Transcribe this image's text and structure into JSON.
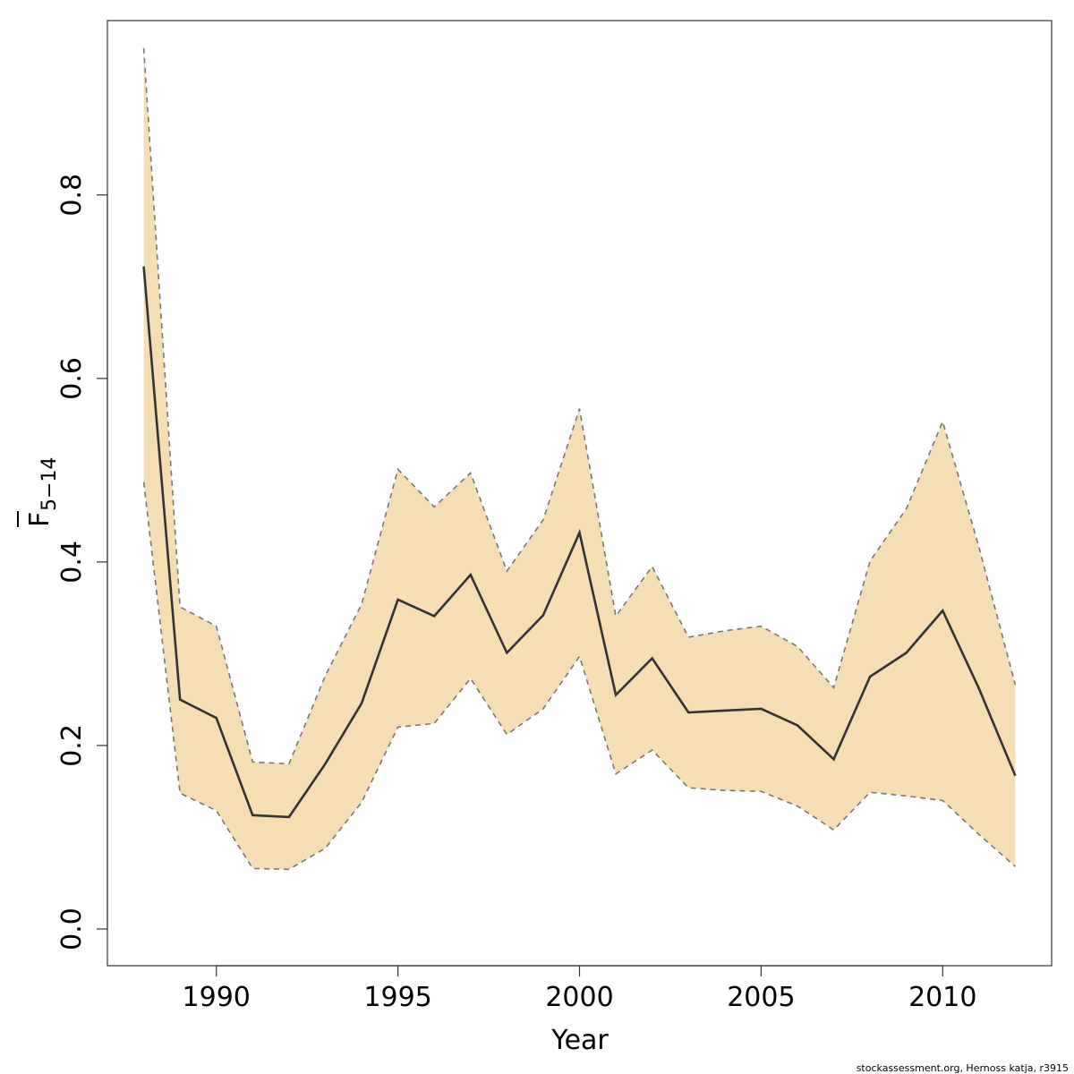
{
  "chart_data": {
    "type": "area",
    "title": "",
    "xlabel": "Year",
    "ylabel": {
      "main": "F",
      "subscript": "5−14"
    },
    "xlim": [
      1987.0,
      2013.0
    ],
    "ylim": [
      -0.04,
      0.99
    ],
    "x_ticks": [
      1990,
      1995,
      2000,
      2005,
      2010
    ],
    "y_ticks": [
      0.0,
      0.2,
      0.4,
      0.6,
      0.8
    ],
    "x_tick_labels": [
      "1990",
      "1995",
      "2000",
      "2005",
      "2010"
    ],
    "y_tick_labels": [
      "0.0",
      "0.2",
      "0.4",
      "0.6",
      "0.8"
    ],
    "x": [
      1988,
      1989,
      1990,
      1991,
      1992,
      1993,
      1994,
      1995,
      1996,
      1997,
      1998,
      1999,
      2000,
      2001,
      2002,
      2003,
      2004,
      2005,
      2006,
      2007,
      2008,
      2009,
      2010,
      2011,
      2012
    ],
    "series": [
      {
        "role": "estimate",
        "values": [
          0.722,
          0.25,
          0.23,
          0.124,
          0.122,
          0.18,
          0.246,
          0.359,
          0.341,
          0.386,
          0.301,
          0.342,
          0.432,
          0.255,
          0.295,
          0.236,
          0.238,
          0.24,
          0.222,
          0.185,
          0.275,
          0.301,
          0.347,
          0.262,
          0.167
        ]
      },
      {
        "role": "upper",
        "values": [
          0.96,
          0.351,
          0.33,
          0.182,
          0.18,
          0.276,
          0.354,
          0.501,
          0.46,
          0.497,
          0.39,
          0.446,
          0.567,
          0.341,
          0.395,
          0.318,
          0.325,
          0.33,
          0.308,
          0.263,
          0.401,
          0.458,
          0.553,
          0.416,
          0.266
        ]
      },
      {
        "role": "lower",
        "values": [
          0.487,
          0.148,
          0.129,
          0.066,
          0.065,
          0.088,
          0.138,
          0.22,
          0.224,
          0.273,
          0.212,
          0.24,
          0.297,
          0.169,
          0.195,
          0.154,
          0.151,
          0.15,
          0.134,
          0.108,
          0.149,
          0.145,
          0.14,
          0.103,
          0.068
        ]
      }
    ],
    "colors": {
      "band_fill": "#F5DEB3",
      "band_edge": "#777777",
      "line": "#333333",
      "axis": "#333333"
    },
    "grid": false,
    "legend": "none"
  },
  "credit": "stockassessment.org, Hernoss  katja, r3915"
}
